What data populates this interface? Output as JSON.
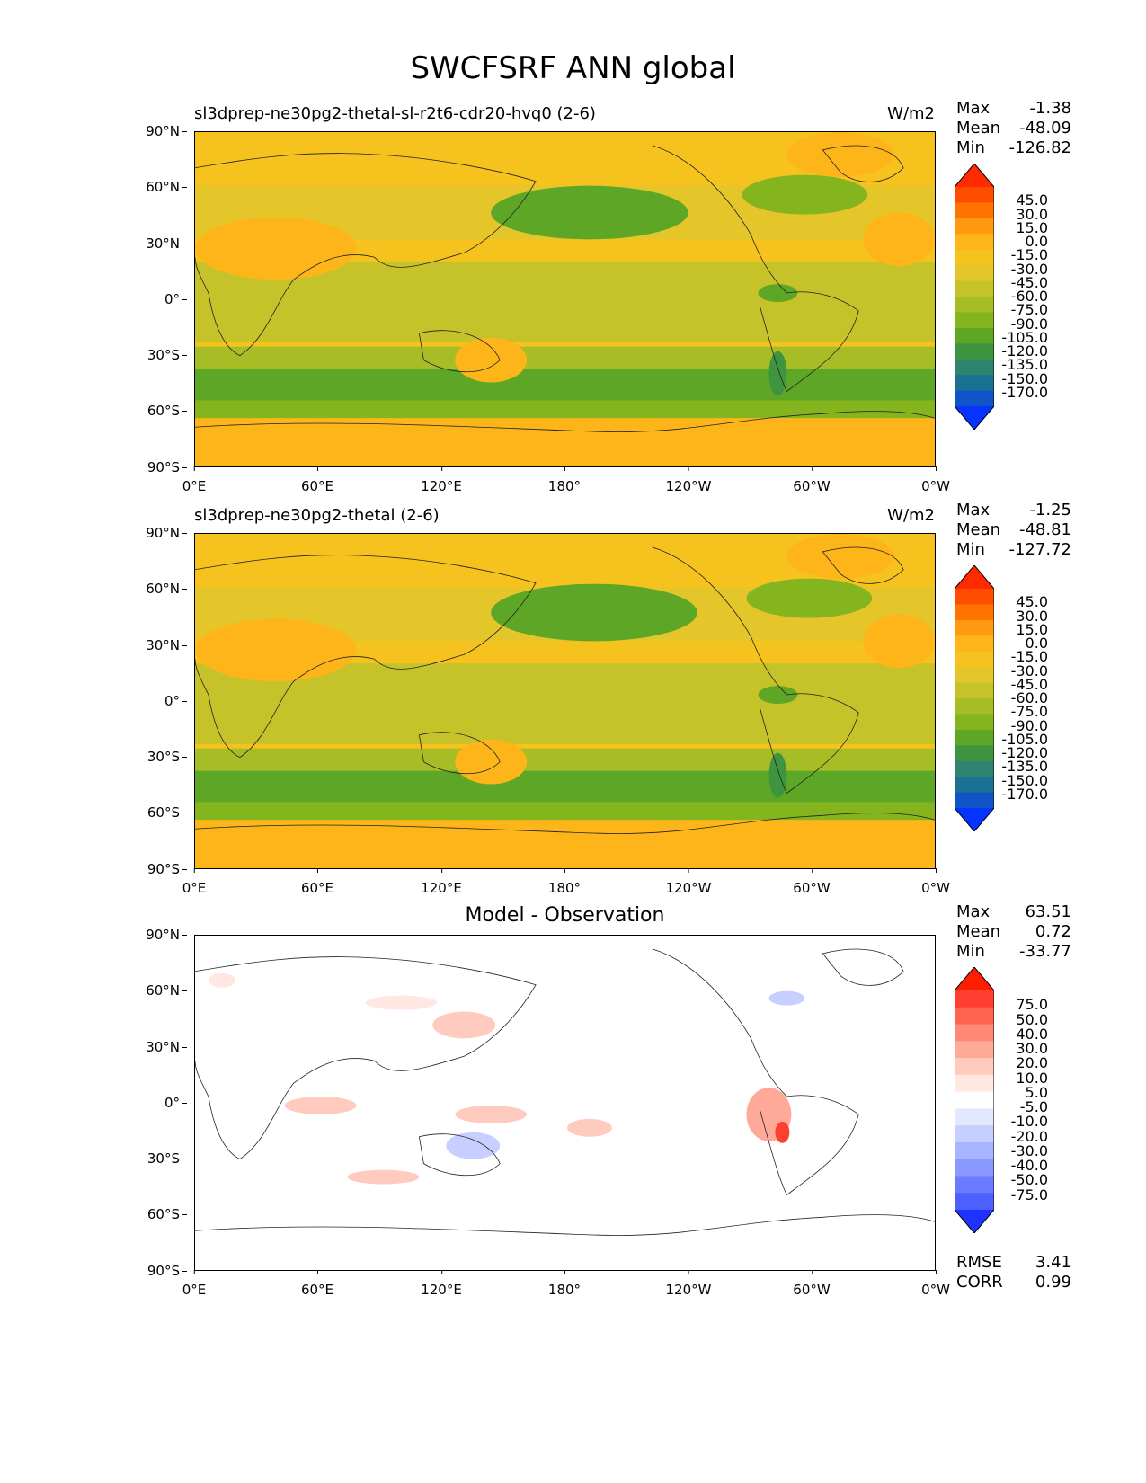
{
  "title": "SWCFSRF ANN global",
  "axes": {
    "y_ticks": [
      "90°N",
      "60°N",
      "30°N",
      "0°",
      "30°S",
      "60°S",
      "90°S"
    ],
    "x_ticks": [
      "0°E",
      "60°E",
      "120°E",
      "180°",
      "120°W",
      "60°W",
      "0°W"
    ]
  },
  "panels": [
    {
      "title": "sl3dprep-ne30pg2-thetal-sl-r2t6-cdr20-hvq0 (2-6)",
      "units": "W/m2",
      "stats": {
        "max_label": "Max",
        "max": "-1.38",
        "mean_label": "Mean",
        "mean": "-48.09",
        "min_label": "Min",
        "min": "-126.82"
      },
      "colorbar_labels": [
        "45.0",
        "30.0",
        "15.0",
        "0.0",
        "-15.0",
        "-30.0",
        "-45.0",
        "-60.0",
        "-75.0",
        "-90.0",
        "-105.0",
        "-120.0",
        "-135.0",
        "-150.0",
        "-170.0"
      ]
    },
    {
      "title": "sl3dprep-ne30pg2-thetal (2-6)",
      "units": "W/m2",
      "stats": {
        "max_label": "Max",
        "max": "-1.25",
        "mean_label": "Mean",
        "mean": "-48.81",
        "min_label": "Min",
        "min": "-127.72"
      },
      "colorbar_labels": [
        "45.0",
        "30.0",
        "15.0",
        "0.0",
        "-15.0",
        "-30.0",
        "-45.0",
        "-60.0",
        "-75.0",
        "-90.0",
        "-105.0",
        "-120.0",
        "-135.0",
        "-150.0",
        "-170.0"
      ]
    },
    {
      "title": "Model - Observation",
      "units": "",
      "stats": {
        "max_label": "Max",
        "max": "63.51",
        "mean_label": "Mean",
        "mean": "0.72",
        "min_label": "Min",
        "min": "-33.77"
      },
      "colorbar_labels": [
        "75.0",
        "50.0",
        "40.0",
        "30.0",
        "20.0",
        "10.0",
        "5.0",
        "-5.0",
        "-10.0",
        "-20.0",
        "-30.0",
        "-40.0",
        "-50.0",
        "-75.0"
      ],
      "rmse_label": "RMSE",
      "rmse": "3.41",
      "corr_label": "CORR",
      "corr": "0.99"
    }
  ],
  "colors": {
    "field_colorbar": [
      "#ff2a00",
      "#ff4d00",
      "#ff7300",
      "#ff9a10",
      "#fdb51a",
      "#f5c21e",
      "#e4c52a",
      "#c6c229",
      "#a7bd26",
      "#84b41e",
      "#5ea726",
      "#3f943f",
      "#2f8371",
      "#1a7293",
      "#1055c8",
      "#0533ff"
    ],
    "diff_colorbar": [
      "#ff1f00",
      "#ff4030",
      "#ff6450",
      "#ff8877",
      "#ffaa99",
      "#ffcbbf",
      "#ffe8e2",
      "#ffffff",
      "#e3e8ff",
      "#c6cfff",
      "#a8b4ff",
      "#8a99ff",
      "#6a7bff",
      "#4d5fff",
      "#1e33ff"
    ]
  }
}
